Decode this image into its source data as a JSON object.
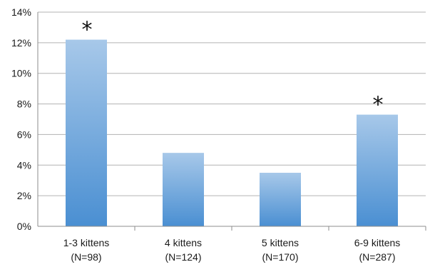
{
  "chart_data": {
    "type": "bar",
    "title": "",
    "xlabel": "",
    "ylabel": "",
    "categories": [
      [
        "1-3 kittens",
        "(N=98)"
      ],
      [
        "4 kittens",
        "(N=124)"
      ],
      [
        "5 kittens",
        "(N=170)"
      ],
      [
        "6-9 kittens",
        "(N=287)"
      ]
    ],
    "values": [
      12.2,
      4.8,
      3.5,
      7.3
    ],
    "annotations": [
      "*",
      "",
      "",
      "*"
    ],
    "ylim": [
      0,
      14
    ],
    "yticks": [
      0,
      2,
      4,
      6,
      8,
      10,
      12,
      14
    ],
    "ytick_labels": [
      "0%",
      "2%",
      "4%",
      "6%",
      "8%",
      "10%",
      "12%",
      "14%"
    ],
    "grid": true,
    "bar_color_top": "#a7c8e9",
    "bar_color_bottom": "#4a8fd2",
    "gridline_color": "#b3b3b3",
    "axis_color": "#8c8c8c"
  }
}
